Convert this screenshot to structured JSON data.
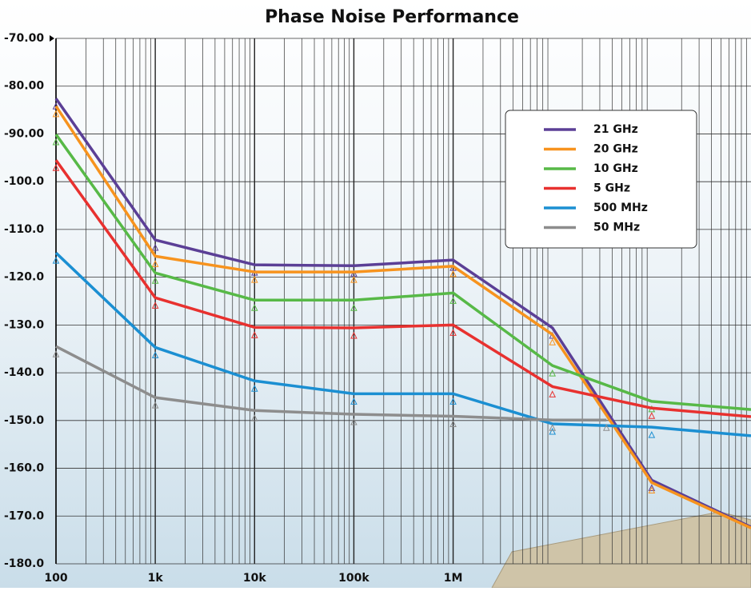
{
  "chart_data": {
    "type": "line",
    "title": "Phase Noise Performance",
    "x": [
      100,
      1000,
      10000,
      100000,
      1000000,
      10000000,
      100000000,
      1000000000
    ],
    "xscale": "log",
    "xlim": [
      100,
      1000000000
    ],
    "xticks": [
      {
        "value": 100,
        "label": "100"
      },
      {
        "value": 1000,
        "label": "1k"
      },
      {
        "value": 10000,
        "label": "10k"
      },
      {
        "value": 100000,
        "label": "100k"
      },
      {
        "value": 1000000,
        "label": "1M"
      }
    ],
    "ylim": [
      -180,
      -70
    ],
    "yticks": [
      {
        "value": -70,
        "label": "-70.00"
      },
      {
        "value": -80,
        "label": "-80.00"
      },
      {
        "value": -90,
        "label": "-90.00"
      },
      {
        "value": -100,
        "label": "-100.0"
      },
      {
        "value": -110,
        "label": "-110.0"
      },
      {
        "value": -120,
        "label": "-120.0"
      },
      {
        "value": -130,
        "label": "-130.0"
      },
      {
        "value": -140,
        "label": "-140.0"
      },
      {
        "value": -150,
        "label": "-150.0"
      },
      {
        "value": -160,
        "label": "-160.0"
      },
      {
        "value": -170,
        "label": "-170.0"
      },
      {
        "value": -180,
        "label": "-180.0"
      }
    ],
    "grid": true,
    "series": [
      {
        "name": "21 GHz",
        "color": "#5b3f96",
        "values": [
          -82.6,
          -112.2,
          -117.4,
          -117.6,
          -116.4,
          -130.6,
          -162.5,
          -172.3
        ]
      },
      {
        "name": "20 GHz",
        "color": "#f7931e",
        "values": [
          -84.2,
          -115.6,
          -118.9,
          -118.9,
          -117.7,
          -132.0,
          -163.0,
          -172.5
        ]
      },
      {
        "name": "10 GHz",
        "color": "#57b947",
        "values": [
          -90.1,
          -119.1,
          -124.8,
          -124.8,
          -123.3,
          -138.5,
          -146.0,
          -147.7
        ]
      },
      {
        "name": "5 GHz",
        "color": "#e8312f",
        "values": [
          -95.5,
          -124.3,
          -130.5,
          -130.6,
          -130.0,
          -142.9,
          -147.4,
          -149.2
        ]
      },
      {
        "name": "500 MHz",
        "color": "#1b8fd2",
        "values": [
          -114.9,
          -134.7,
          -141.7,
          -144.4,
          -144.4,
          -150.7,
          -151.4,
          -153.2
        ]
      },
      {
        "name": "50 MHz",
        "color": "#8d8d8d",
        "x": [
          100,
          1000,
          10000,
          100000,
          1000000,
          10000000,
          35000000
        ],
        "values": [
          -134.5,
          -145.2,
          -147.9,
          -148.7,
          -149.1,
          -149.9,
          -149.9
        ]
      }
    ]
  }
}
